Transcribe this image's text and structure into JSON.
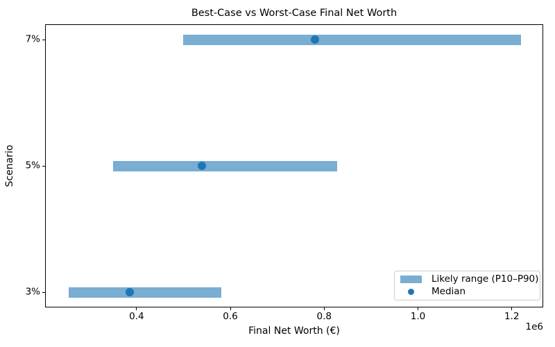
{
  "chart_data": {
    "type": "bar",
    "orientation": "horizontal",
    "title": "Best-Case vs Worst-Case Final Net Worth",
    "xlabel": "Final Net Worth (€)",
    "ylabel": "Scenario",
    "x_offset_label": "1e6",
    "xlim": [
      205000,
      1267000
    ],
    "x_ticks": [
      {
        "value": 400000,
        "label": "0.4"
      },
      {
        "value": 600000,
        "label": "0.6"
      },
      {
        "value": 800000,
        "label": "0.8"
      },
      {
        "value": 1000000,
        "label": "1.0"
      },
      {
        "value": 1200000,
        "label": "1.2"
      }
    ],
    "categories": [
      "7%",
      "5%",
      "3%"
    ],
    "scenarios": [
      {
        "label": "7%",
        "p10": 500000,
        "median": 780000,
        "p90": 1220000
      },
      {
        "label": "5%",
        "p10": 350000,
        "median": 540000,
        "p90": 828000
      },
      {
        "label": "3%",
        "p10": 255000,
        "median": 385000,
        "p90": 580000
      }
    ],
    "legend": {
      "position": "lower right",
      "items": [
        {
          "type": "swatch",
          "label": "Likely range (P10–P90)"
        },
        {
          "type": "dot",
          "label": "Median"
        }
      ]
    },
    "grid": false,
    "colors": {
      "range_bar": "#79add2",
      "median_dot": "#1f77b4",
      "spine": "#000000",
      "text": "#000000",
      "legend_border": "#cccccc"
    }
  }
}
